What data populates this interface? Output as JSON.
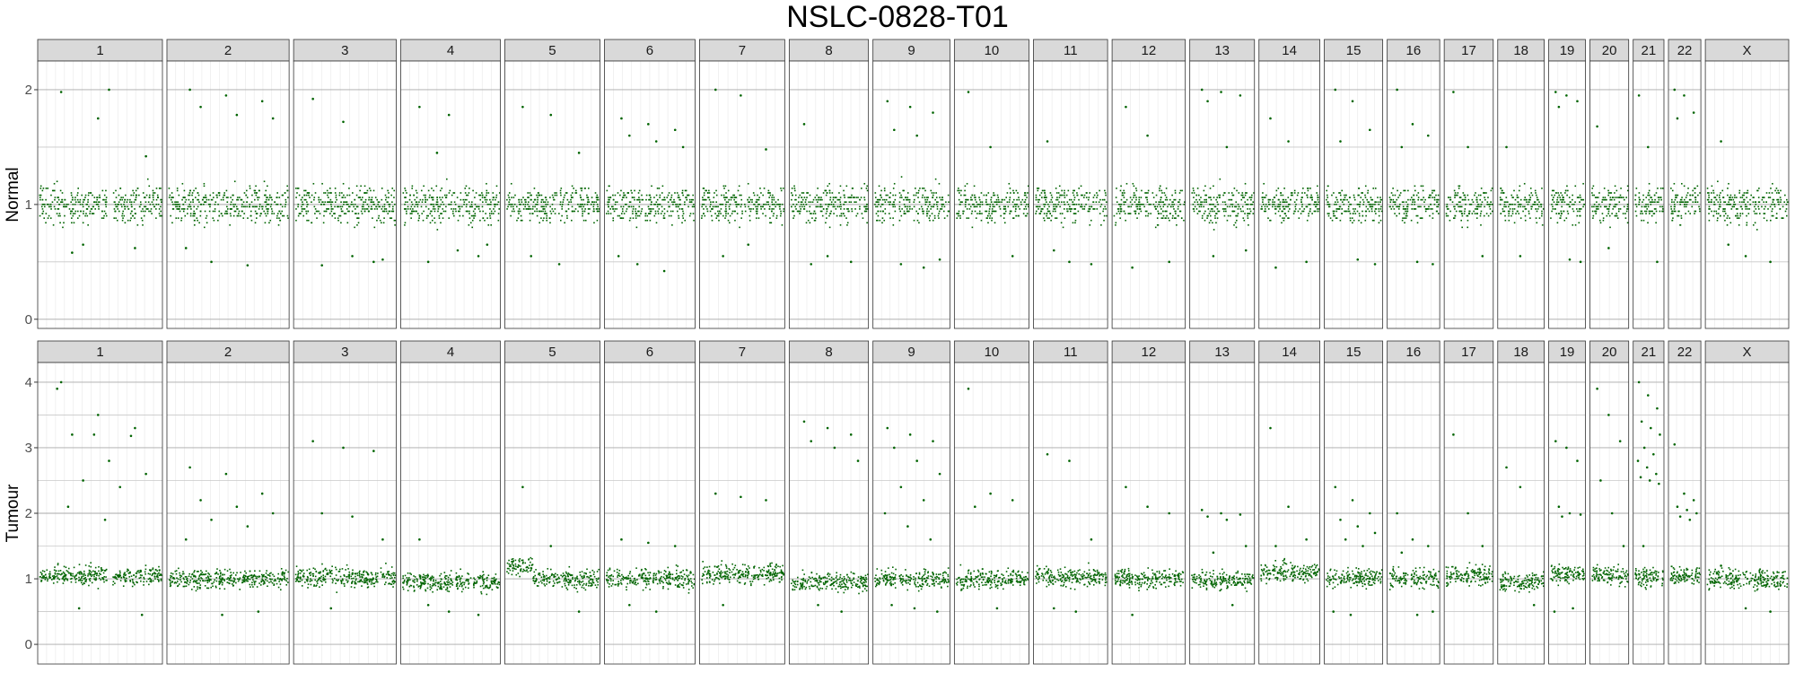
{
  "chart_data": {
    "type": "scatter",
    "title": "NSLC-0828-T01",
    "xlabel": "",
    "ylabel": "",
    "grid": true,
    "facet_columns": [
      "1",
      "2",
      "3",
      "4",
      "5",
      "6",
      "7",
      "8",
      "9",
      "10",
      "11",
      "12",
      "13",
      "14",
      "15",
      "16",
      "17",
      "18",
      "19",
      "20",
      "21",
      "22",
      "X"
    ],
    "chromosome_relative_size": [
      249,
      243,
      198,
      191,
      181,
      171,
      159,
      146,
      141,
      136,
      135,
      133,
      115,
      107,
      102,
      90,
      83,
      78,
      59,
      63,
      48,
      51,
      155
    ],
    "point_color": "#006400",
    "rows": [
      {
        "label": "Normal",
        "ylim": [
          -0.08,
          2.25
        ],
        "yticks": [
          0,
          1,
          2
        ],
        "minor_yticks": [
          0.5,
          1.5
        ],
        "baseline": 1.0,
        "band_halfwidth": 0.13,
        "outliers_by_chromosome": {
          "1": [
            1.98,
            1.75,
            0.62,
            0.58,
            2.0,
            1.42,
            0.65
          ],
          "2": [
            2.0,
            1.95,
            1.9,
            1.85,
            1.78,
            1.75,
            0.5,
            0.47,
            0.62
          ],
          "3": [
            1.92,
            1.72,
            0.5,
            0.47,
            0.55,
            0.52
          ],
          "4": [
            1.85,
            1.78,
            0.55,
            0.5,
            0.6,
            0.65,
            1.45
          ],
          "5": [
            1.85,
            1.78,
            1.45,
            0.55,
            0.48
          ],
          "6": [
            1.75,
            1.7,
            1.65,
            1.6,
            1.55,
            1.5,
            0.48,
            0.42,
            0.55
          ],
          "7": [
            2.0,
            1.95,
            1.48,
            0.55,
            0.65
          ],
          "8": [
            1.7,
            0.55,
            0.5,
            0.48
          ],
          "9": [
            1.9,
            1.85,
            1.8,
            1.65,
            1.6,
            0.52,
            0.48,
            0.45
          ],
          "10": [
            1.98,
            1.5,
            0.55
          ],
          "11": [
            1.55,
            0.5,
            0.48,
            0.6
          ],
          "12": [
            1.85,
            1.6,
            0.5,
            0.45
          ],
          "13": [
            2.0,
            1.98,
            1.95,
            1.9,
            1.5,
            0.6,
            0.55
          ],
          "14": [
            1.75,
            1.55,
            0.5,
            0.45
          ],
          "15": [
            2.0,
            1.9,
            1.65,
            1.55,
            0.52,
            0.48
          ],
          "16": [
            2.0,
            1.7,
            1.6,
            1.5,
            0.5,
            0.48
          ],
          "17": [
            1.98,
            1.5,
            0.55
          ],
          "18": [
            1.5,
            0.55
          ],
          "19": [
            1.98,
            1.95,
            1.9,
            1.85,
            0.52,
            0.5
          ],
          "20": [
            1.68,
            0.62
          ],
          "21": [
            1.95,
            1.5,
            0.5
          ],
          "22": [
            2.0,
            1.95,
            1.8,
            1.75
          ],
          "X": [
            1.55,
            0.55,
            0.5,
            0.65
          ]
        }
      },
      {
        "label": "Tumour",
        "ylim": [
          -0.3,
          4.3
        ],
        "yticks": [
          0,
          1,
          2,
          3,
          4
        ],
        "minor_yticks": [
          0.5,
          1.5,
          2.5,
          3.5
        ],
        "baseline": 1.0,
        "band_halfwidth": 0.12,
        "segments": [
          {
            "chrom": "1",
            "level": 1.05
          },
          {
            "chrom": "2",
            "level": 1.0
          },
          {
            "chrom": "3",
            "level": 1.02
          },
          {
            "chrom": "4",
            "level": 0.95
          },
          {
            "chrom": "5",
            "start": 0.0,
            "end": 0.28,
            "level": 1.2
          },
          {
            "chrom": "5",
            "start": 0.28,
            "end": 1.0,
            "level": 1.0
          },
          {
            "chrom": "6",
            "level": 1.0
          },
          {
            "chrom": "7",
            "level": 1.08
          },
          {
            "chrom": "8",
            "level": 0.95
          },
          {
            "chrom": "9",
            "level": 1.0
          },
          {
            "chrom": "10",
            "level": 1.0
          },
          {
            "chrom": "11",
            "level": 1.02
          },
          {
            "chrom": "12",
            "level": 1.0
          },
          {
            "chrom": "13",
            "level": 0.98
          },
          {
            "chrom": "14",
            "level": 1.1
          },
          {
            "chrom": "15",
            "level": 1.02
          },
          {
            "chrom": "16",
            "level": 1.0
          },
          {
            "chrom": "17",
            "level": 1.05
          },
          {
            "chrom": "18",
            "level": 0.95
          },
          {
            "chrom": "19",
            "level": 1.08
          },
          {
            "chrom": "20",
            "level": 1.05
          },
          {
            "chrom": "21",
            "level": 1.02
          },
          {
            "chrom": "22",
            "level": 1.05
          },
          {
            "chrom": "X",
            "level": 1.0
          }
        ],
        "outliers_by_chromosome": {
          "1": [
            4.0,
            3.5,
            3.3,
            3.2,
            2.8,
            2.6,
            2.5,
            2.4,
            3.9,
            3.2,
            3.18,
            2.1,
            1.9,
            0.45,
            0.55
          ],
          "2": [
            2.7,
            2.6,
            2.3,
            2.2,
            2.1,
            2.0,
            1.9,
            1.8,
            1.6,
            0.45,
            0.5
          ],
          "3": [
            3.1,
            3.0,
            2.95,
            2.0,
            1.95,
            1.6,
            0.55
          ],
          "4": [
            1.6,
            0.5,
            0.45,
            0.6
          ],
          "5": [
            2.4,
            1.5,
            0.5
          ],
          "6": [
            1.6,
            1.55,
            1.5,
            0.6,
            0.5
          ],
          "7": [
            2.3,
            2.25,
            2.2,
            0.6
          ],
          "8": [
            3.4,
            3.3,
            3.2,
            3.1,
            3.0,
            2.8,
            0.6,
            0.5
          ],
          "9": [
            3.3,
            3.2,
            3.1,
            3.0,
            2.8,
            2.6,
            2.4,
            2.2,
            2.0,
            1.8,
            1.6,
            0.6,
            0.55,
            0.5
          ],
          "10": [
            3.9,
            2.3,
            2.2,
            2.1,
            0.55
          ],
          "11": [
            2.9,
            2.8,
            1.6,
            0.55,
            0.5
          ],
          "12": [
            2.4,
            2.1,
            2.0,
            0.45
          ],
          "13": [
            2.05,
            2.0,
            1.98,
            1.95,
            1.9,
            1.5,
            1.4,
            0.6
          ],
          "14": [
            3.3,
            2.1,
            1.6,
            1.5
          ],
          "15": [
            2.4,
            2.2,
            2.0,
            1.9,
            1.8,
            1.7,
            1.6,
            1.5,
            0.5,
            0.45
          ],
          "16": [
            2.0,
            1.6,
            1.5,
            1.4,
            0.45,
            0.5
          ],
          "17": [
            3.2,
            2.0,
            1.5
          ],
          "18": [
            2.7,
            2.4,
            0.6
          ],
          "19": [
            3.1,
            3.0,
            2.8,
            2.1,
            2.0,
            1.98,
            1.95,
            0.55,
            0.5
          ],
          "20": [
            3.9,
            3.5,
            3.1,
            2.5,
            2.0,
            1.5
          ],
          "21": [
            4.0,
            3.8,
            3.6,
            3.4,
            3.3,
            3.2,
            3.0,
            2.9,
            2.8,
            2.7,
            2.6,
            2.55,
            2.5,
            2.45,
            1.5
          ],
          "22": [
            3.05,
            2.3,
            2.2,
            2.1,
            2.05,
            2.0,
            1.95,
            1.9
          ],
          "X": [
            1.2,
            0.55,
            0.5
          ]
        }
      }
    ]
  }
}
